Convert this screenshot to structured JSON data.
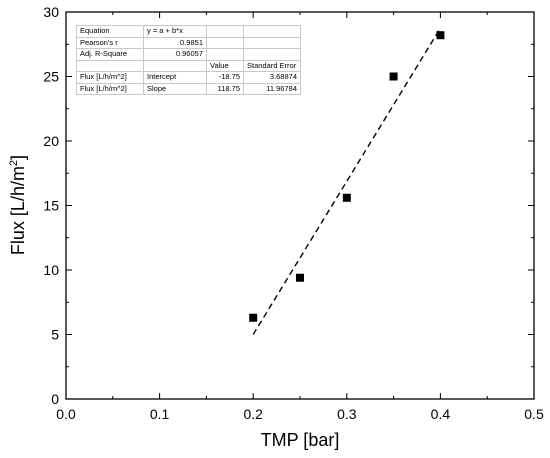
{
  "chart_data": {
    "type": "scatter",
    "xlabel": "TMP [bar]",
    "ylabel_main": "Flux [L/h/m",
    "ylabel_sup": "2",
    "ylabel_end": "]",
    "xlim": [
      0.0,
      0.5
    ],
    "ylim": [
      0,
      30
    ],
    "x_ticks": [
      "0.0",
      "0.1",
      "0.2",
      "0.3",
      "0.4",
      "0.5"
    ],
    "y_ticks": [
      "0",
      "5",
      "10",
      "15",
      "20",
      "25",
      "30"
    ],
    "grid": false,
    "series": [
      {
        "marker": "square",
        "color": "#000000",
        "points": [
          {
            "x": 0.2,
            "y": 6.3
          },
          {
            "x": 0.25,
            "y": 9.4
          },
          {
            "x": 0.3,
            "y": 15.6
          },
          {
            "x": 0.35,
            "y": 25.0
          },
          {
            "x": 0.4,
            "y": 28.2
          }
        ]
      }
    ],
    "fit_line": {
      "style": "dashed",
      "intercept": -18.75,
      "slope": 118.75,
      "x_range": [
        0.2,
        0.4
      ]
    },
    "fit_table": {
      "rows": [
        [
          "Equation",
          "y = a + b*x",
          "",
          ""
        ],
        [
          "Pearson's r",
          "0.9851",
          "",
          ""
        ],
        [
          "Adj. R-Square",
          "0.96057",
          "",
          ""
        ],
        [
          "",
          "",
          "Value",
          "Standard Error"
        ],
        [
          "Flux [L/h/m^2]",
          "Intercept",
          "-18.75",
          "3.68874"
        ],
        [
          "Flux [L/h/m^2]",
          "Slope",
          "118.75",
          "11.96784"
        ]
      ]
    }
  }
}
